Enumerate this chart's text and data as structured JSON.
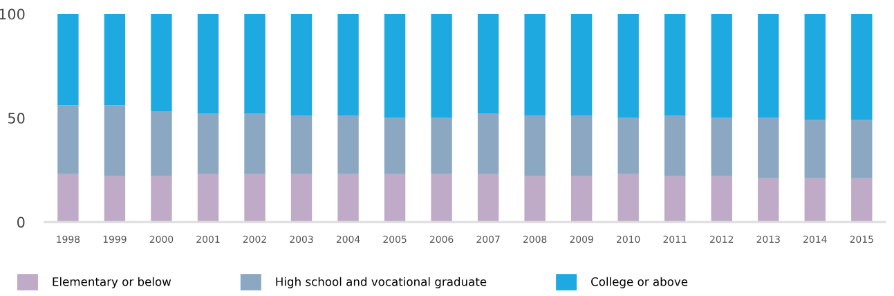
{
  "chart_data": {
    "type": "bar",
    "stacked": true,
    "categories": [
      "1998",
      "1999",
      "2000",
      "2001",
      "2002",
      "2003",
      "2004",
      "2005",
      "2006",
      "2007",
      "2008",
      "2009",
      "2010",
      "2011",
      "2012",
      "2013",
      "2014",
      "2015"
    ],
    "series": [
      {
        "name": "Elementary or below",
        "color": "#bfabc8",
        "values": [
          23,
          22,
          22,
          23,
          23,
          23,
          23,
          23,
          23,
          23,
          22,
          22,
          23,
          22,
          22,
          21,
          21,
          21
        ]
      },
      {
        "name": "High school and vocational graduate",
        "color": "#8ca7c1",
        "values": [
          33,
          34,
          31,
          29,
          29,
          28,
          28,
          27,
          27,
          29,
          29,
          29,
          27,
          29,
          28,
          29,
          28,
          28
        ]
      },
      {
        "name": "College or above",
        "color": "#1fa9e1",
        "values": [
          44,
          44,
          47,
          48,
          48,
          49,
          49,
          50,
          50,
          48,
          49,
          49,
          50,
          49,
          50,
          50,
          51,
          51
        ]
      }
    ],
    "ylim": [
      0,
      100
    ],
    "yticks": [
      0,
      50,
      100
    ],
    "grid": false,
    "legend": "bottom left"
  }
}
